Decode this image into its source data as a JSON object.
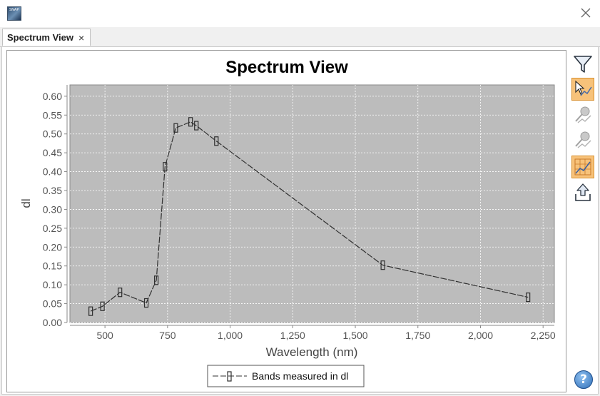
{
  "window": {
    "app_icon_text": "SNAP",
    "close_icon": "close-icon"
  },
  "tabs": [
    {
      "label": "Spectrum View",
      "close_glyph": "×"
    }
  ],
  "toolbar": {
    "buttons": [
      {
        "icon": "filter-icon",
        "active": false
      },
      {
        "icon": "cursor-spectrum-icon",
        "active": true
      },
      {
        "icon": "remove-pin-icon",
        "active": false
      },
      {
        "icon": "pin-spectrum-icon",
        "active": false
      },
      {
        "icon": "grid-chart-icon",
        "active": true
      },
      {
        "icon": "export-icon",
        "active": false
      }
    ],
    "help_glyph": "?"
  },
  "chart_data": {
    "type": "line",
    "title": "Spectrum View",
    "xlabel": "Wavelength (nm)",
    "ylabel": "dl",
    "xlim": [
      360,
      2295
    ],
    "ylim": [
      0.0,
      0.63
    ],
    "x_ticks": [
      500,
      750,
      1000,
      1250,
      1500,
      1750,
      2000,
      2250
    ],
    "x_tick_labels": [
      "500",
      "750",
      "1,000",
      "1,250",
      "1,500",
      "1,750",
      "2,000",
      "2,250"
    ],
    "y_ticks": [
      0.0,
      0.05,
      0.1,
      0.15,
      0.2,
      0.25,
      0.3,
      0.35,
      0.4,
      0.45,
      0.5,
      0.55,
      0.6
    ],
    "y_tick_labels": [
      "0.00",
      "0.05",
      "0.10",
      "0.15",
      "0.20",
      "0.25",
      "0.30",
      "0.35",
      "0.40",
      "0.45",
      "0.50",
      "0.55",
      "0.60"
    ],
    "grid": true,
    "legend_position": "bottom",
    "series": [
      {
        "name": "Bands measured in dl",
        "color": "#303030",
        "x": [
          443,
          490,
          560,
          665,
          705,
          740,
          783,
          842,
          865,
          945,
          1610,
          2190
        ],
        "y": [
          0.03,
          0.043,
          0.08,
          0.052,
          0.112,
          0.413,
          0.516,
          0.532,
          0.522,
          0.481,
          0.152,
          0.067
        ]
      }
    ]
  }
}
